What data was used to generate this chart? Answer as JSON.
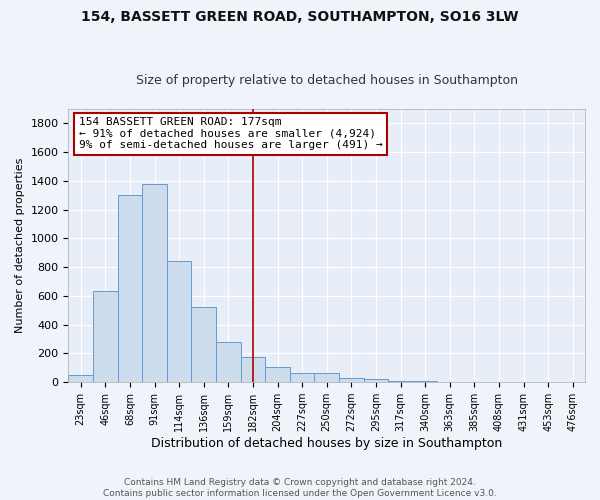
{
  "title": "154, BASSETT GREEN ROAD, SOUTHAMPTON, SO16 3LW",
  "subtitle": "Size of property relative to detached houses in Southampton",
  "xlabel": "Distribution of detached houses by size in Southampton",
  "ylabel": "Number of detached properties",
  "annotation_line1": "154 BASSETT GREEN ROAD: 177sqm",
  "annotation_line2": "← 91% of detached houses are smaller (4,924)",
  "annotation_line3": "9% of semi-detached houses are larger (491) →",
  "property_size_idx": 7,
  "bar_color": "#cddcec",
  "bar_edge_color": "#6699cc",
  "vline_color": "#aa0000",
  "annotation_box_edgecolor": "#aa0000",
  "footnote1": "Contains HM Land Registry data © Crown copyright and database right 2024.",
  "footnote2": "Contains public sector information licensed under the Open Government Licence v3.0.",
  "categories": [
    "23sqm",
    "46sqm",
    "68sqm",
    "91sqm",
    "114sqm",
    "136sqm",
    "159sqm",
    "182sqm",
    "204sqm",
    "227sqm",
    "250sqm",
    "272sqm",
    "295sqm",
    "317sqm",
    "340sqm",
    "363sqm",
    "385sqm",
    "408sqm",
    "431sqm",
    "453sqm",
    "476sqm"
  ],
  "values": [
    50,
    635,
    1300,
    1375,
    840,
    520,
    280,
    175,
    105,
    65,
    65,
    30,
    20,
    10,
    7,
    5,
    4,
    2,
    2,
    1,
    1
  ],
  "ylim": [
    0,
    1900
  ],
  "yticks": [
    0,
    200,
    400,
    600,
    800,
    1000,
    1200,
    1400,
    1600,
    1800
  ],
  "bar_width": 1.0,
  "bg_color": "#f0f4fa",
  "plot_bg_color": "#e8eef8",
  "grid_color": "#ffffff",
  "title_fontsize": 10,
  "subtitle_fontsize": 9,
  "ylabel_fontsize": 8,
  "xlabel_fontsize": 9,
  "tick_fontsize": 8,
  "footnote_fontsize": 6.5
}
